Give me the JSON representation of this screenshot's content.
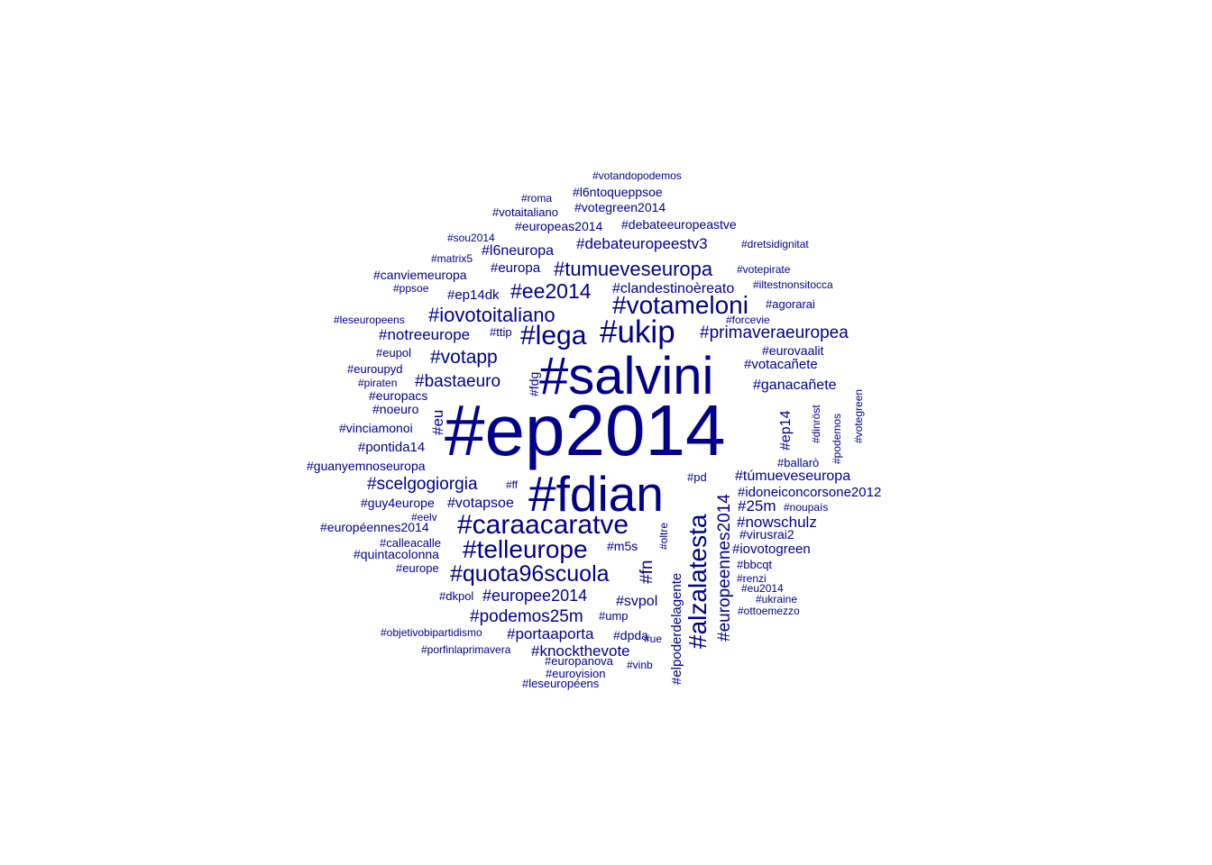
{
  "words": [
    "#votandopodemos",
    "#roma",
    "#l6ntoqueppsoe",
    "#votaitaliano",
    "#votegreen2014",
    "#europeas2014",
    "#debateeuropeastve",
    "#sou2014",
    "#dretsidignitat",
    "#debateuropeestv3",
    "#l6neuropa",
    "#matrix5",
    "#europa",
    "#tumueveseuropa",
    "#votepirate",
    "#canviemeuropa",
    "#iltestnonsitocca",
    "#ppsoe",
    "#clandestinoèreato",
    "#ee2014",
    "#ep14dk",
    "#votameloni",
    "#agorarai",
    "#iovotoitaliano",
    "#leseuropeens",
    "#forcevie",
    "#notreeurope",
    "#lega",
    "#ukip",
    "#primaveraeuropea",
    "#ttip",
    "#eupol",
    "#eurovaalit",
    "#votapp",
    "#salvini",
    "#votacañete",
    "#euroupyd",
    "#bastaeuro",
    "#piraten",
    "#fdg",
    "#ganacañete",
    "#europacs",
    "#noeuro",
    "#ep2014",
    "#eu",
    "#ep14",
    "#dinröst",
    "#podemos",
    "#votegreen",
    "#vinciamonoi",
    "#pontida14",
    "#ballarò",
    "#guanyemnoseuropa",
    "#fdian",
    "#scelgogiorgia",
    "#ff",
    "#pd",
    "#túmueveseuropa",
    "#idoneiconcorsone2012",
    "#guy4europe",
    "#votapsoe",
    "#alzalatesta",
    "#europeennes2014",
    "#25m",
    "#noupaís",
    "#eelv",
    "#caraacaratve",
    "#nowschulz",
    "#européennes2014",
    "#oltre",
    "#virusrai2",
    "#calleacalle",
    "#telleurope",
    "#m5s",
    "#iovotogreen",
    "#quintacolonna",
    "#elpoderdelagente",
    "#fn",
    "#bbcqt",
    "#europe",
    "#quota96scuola",
    "#renzi",
    "#eu2014",
    "#dkpol",
    "#europee2014",
    "#svpol",
    "#ukraine",
    "#ottoemezzo",
    "#podemos25m",
    "#ump",
    "#objetivobipartidismo",
    "#portaaporta",
    "#dpda",
    "#ue",
    "#porfinlaprimavera",
    "#knockthevote",
    "#europanova",
    "#vinb",
    "#eurovision",
    "#leseuropéens"
  ]
}
